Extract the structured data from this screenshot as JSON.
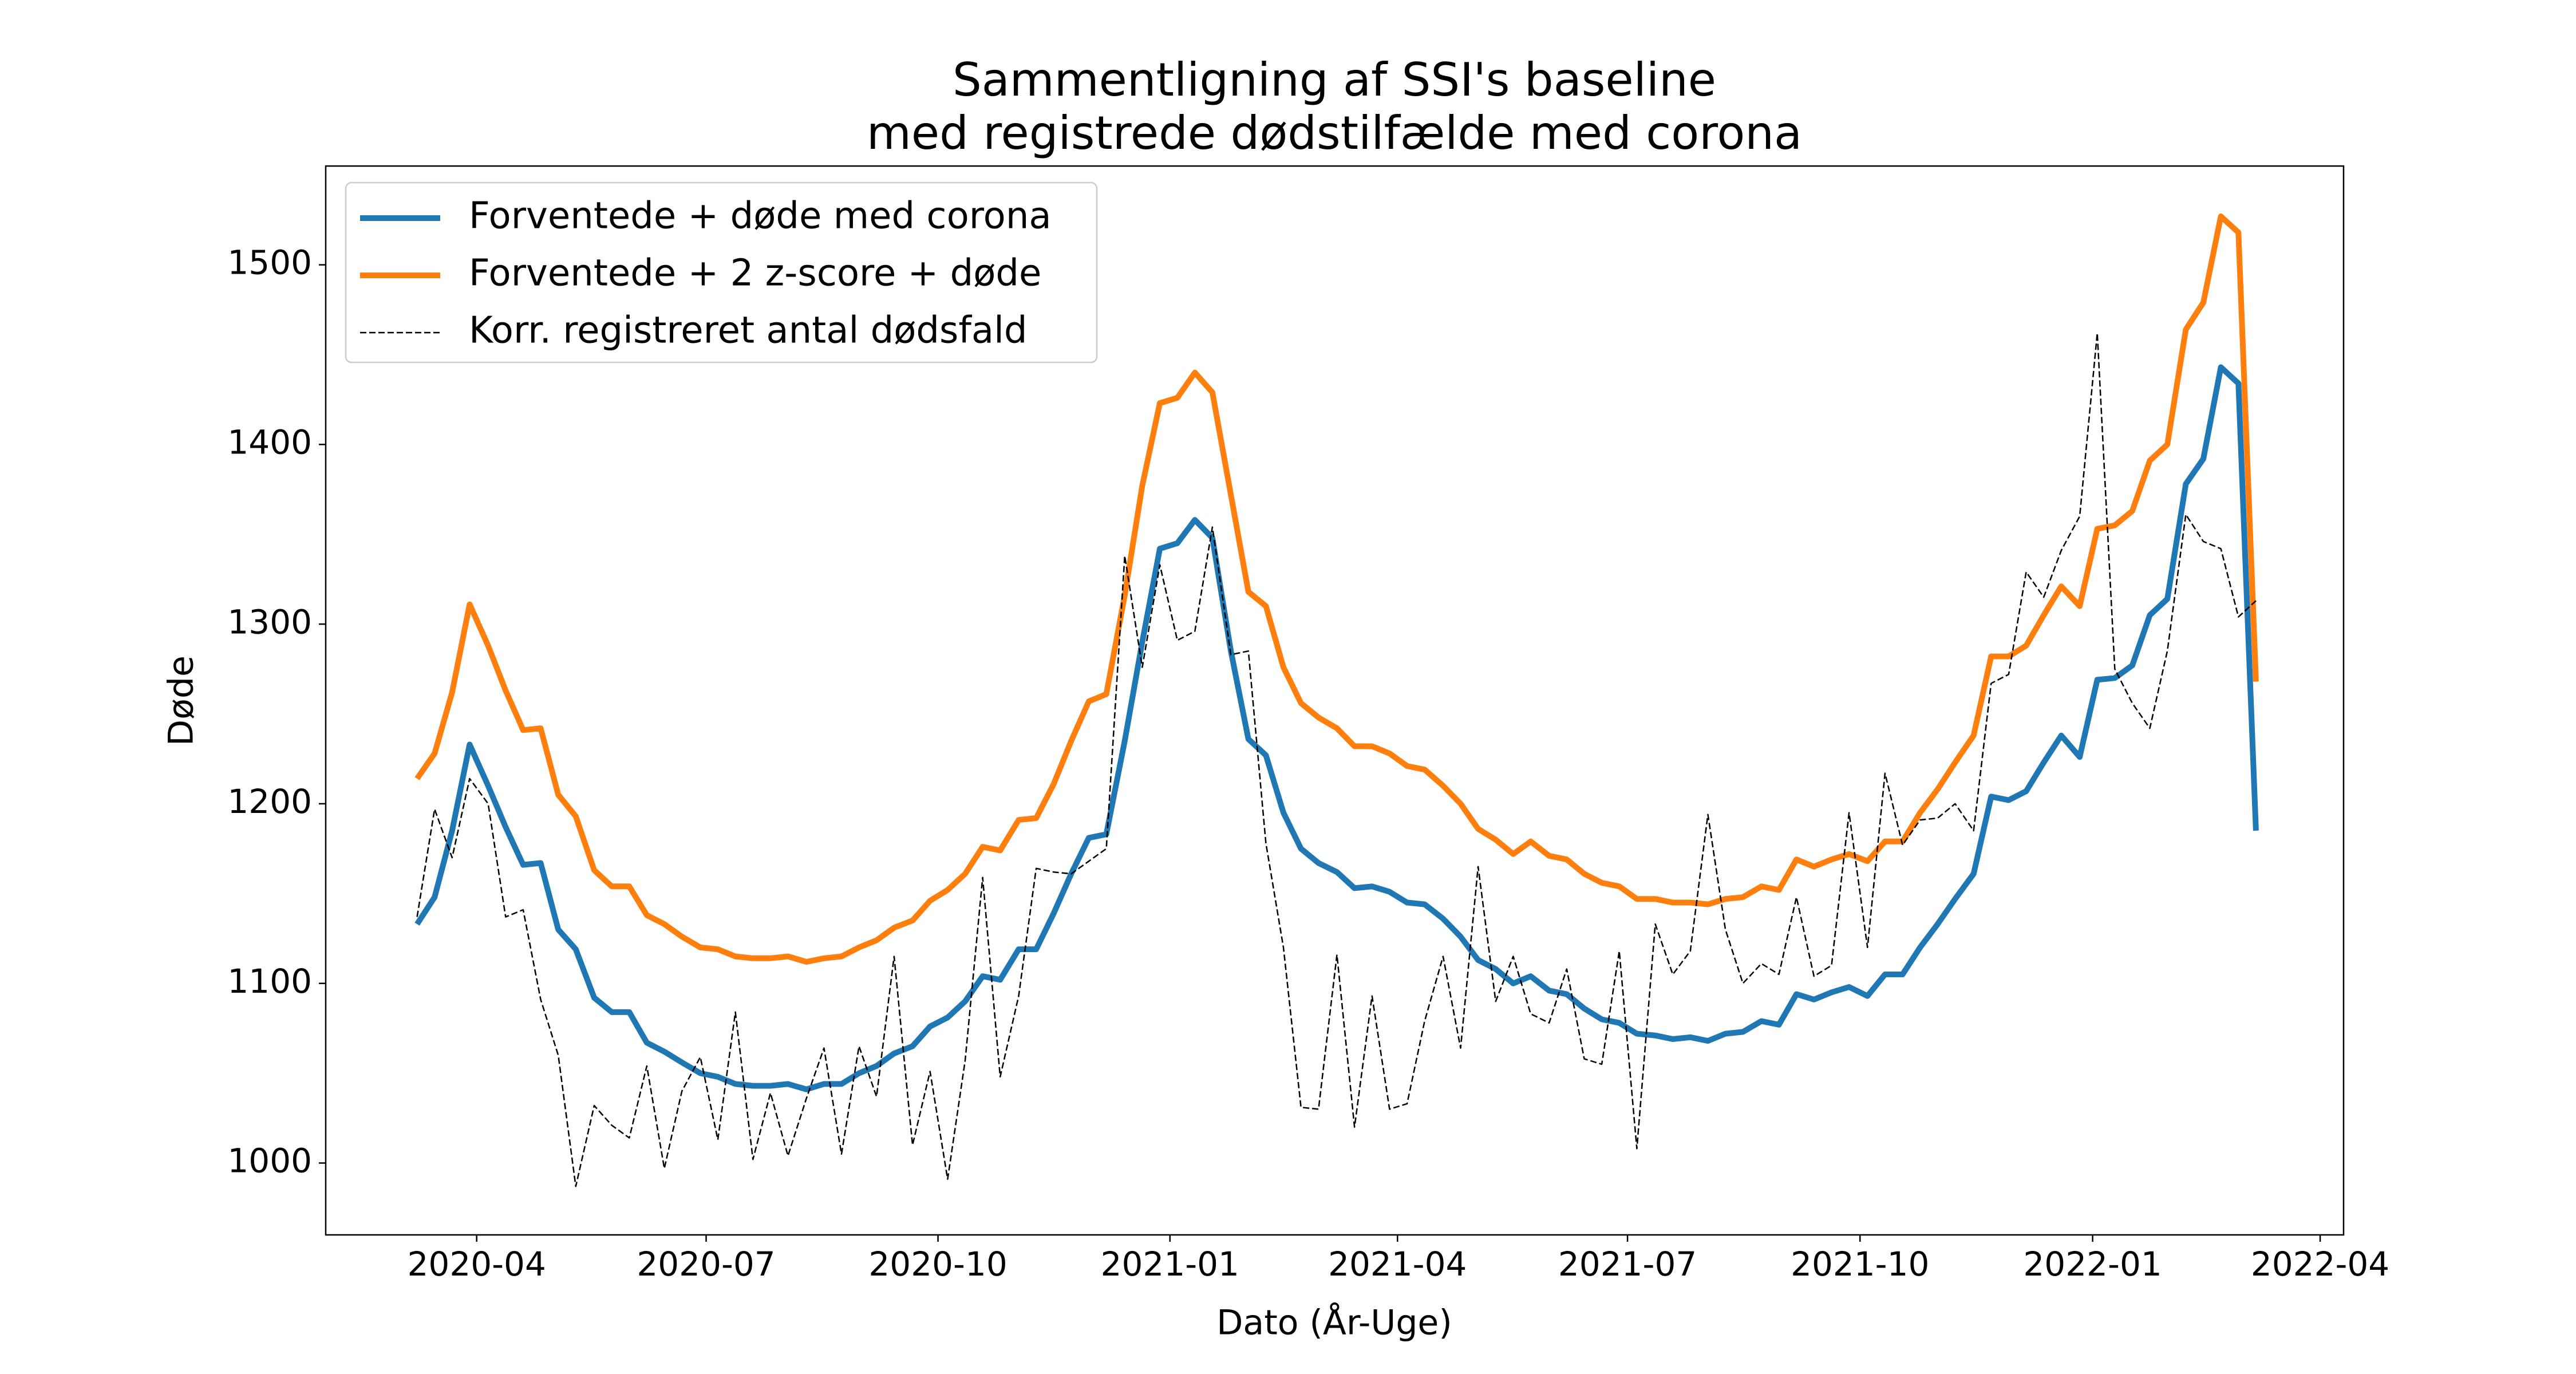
{
  "chart_data": {
    "type": "line",
    "title": [
      "Sammentligning af SSI's baseline",
      "med registrede dødstilfælde med corona"
    ],
    "xlabel": "Dato (År-Uge)",
    "ylabel": "Døde",
    "xlim": [
      2020.085,
      2022.272
    ],
    "ylim": [
      960,
      1555
    ],
    "xticks": [
      {
        "value": 2020.2486,
        "label": "2020-04"
      },
      {
        "value": 2020.4973,
        "label": "2020-07"
      },
      {
        "value": 2020.7486,
        "label": "2020-10"
      },
      {
        "value": 2021.0,
        "label": "2021-01"
      },
      {
        "value": 2021.2466,
        "label": "2021-04"
      },
      {
        "value": 2021.4959,
        "label": "2021-07"
      },
      {
        "value": 2021.7479,
        "label": "2021-10"
      },
      {
        "value": 2022.0,
        "label": "2022-01"
      },
      {
        "value": 2022.2466,
        "label": "2022-04"
      }
    ],
    "yticks": [
      1000,
      1100,
      1200,
      1300,
      1400,
      1500
    ],
    "grid": false,
    "legend": "upper left",
    "x": [
      2020.184,
      2020.203,
      2020.222,
      2020.241,
      2020.261,
      2020.28,
      2020.299,
      2020.318,
      2020.337,
      2020.356,
      2020.376,
      2020.395,
      2020.414,
      2020.433,
      2020.452,
      2020.471,
      2020.491,
      2020.51,
      2020.529,
      2020.548,
      2020.567,
      2020.586,
      2020.606,
      2020.625,
      2020.644,
      2020.663,
      2020.682,
      2020.701,
      2020.721,
      2020.74,
      2020.759,
      2020.778,
      2020.797,
      2020.816,
      2020.836,
      2020.855,
      2020.874,
      2020.893,
      2020.912,
      2020.931,
      2020.951,
      2020.97,
      2020.989,
      2021.008,
      2021.027,
      2021.046,
      2021.066,
      2021.085,
      2021.104,
      2021.123,
      2021.142,
      2021.161,
      2021.181,
      2021.2,
      2021.219,
      2021.238,
      2021.257,
      2021.276,
      2021.296,
      2021.315,
      2021.334,
      2021.353,
      2021.372,
      2021.391,
      2021.411,
      2021.43,
      2021.449,
      2021.468,
      2021.487,
      2021.506,
      2021.526,
      2021.545,
      2021.564,
      2021.583,
      2021.602,
      2021.621,
      2021.641,
      2021.66,
      2021.679,
      2021.698,
      2021.717,
      2021.736,
      2021.756,
      2021.775,
      2021.794,
      2021.813,
      2021.832,
      2021.851,
      2021.871,
      2021.89,
      2021.909,
      2021.928,
      2021.947,
      2021.966,
      2021.986,
      2022.005,
      2022.024,
      2022.043,
      2022.062,
      2022.081,
      2022.101,
      2022.12,
      2022.139,
      2022.158,
      2022.177
    ],
    "series": [
      {
        "name": "Forventede + døde med corona",
        "color": "#1f77b4",
        "style": "solid",
        "width": 10,
        "values": [
          1133,
          1148,
          1185,
          1233,
          1210,
          1187,
          1166,
          1167,
          1130,
          1119,
          1092,
          1084,
          1084,
          1067,
          1062,
          1056,
          1050,
          1048,
          1044,
          1043,
          1043,
          1044,
          1041,
          1044,
          1044,
          1050,
          1054,
          1061,
          1065,
          1076,
          1081,
          1090,
          1104,
          1102,
          1119,
          1119,
          1139,
          1161,
          1181,
          1183,
          1235,
          1290,
          1342,
          1345,
          1358,
          1348,
          1285,
          1236,
          1227,
          1195,
          1175,
          1167,
          1162,
          1153,
          1154,
          1151,
          1145,
          1144,
          1136,
          1126,
          1113,
          1108,
          1100,
          1104,
          1096,
          1094,
          1086,
          1080,
          1078,
          1072,
          1071,
          1069,
          1070,
          1068,
          1072,
          1073,
          1079,
          1077,
          1094,
          1091,
          1095,
          1098,
          1093,
          1105,
          1105,
          1120,
          1133,
          1147,
          1161,
          1204,
          1202,
          1207,
          1223,
          1238,
          1226,
          1269,
          1270,
          1277,
          1305,
          1314,
          1378,
          1392,
          1443,
          1434,
          1185
        ]
      },
      {
        "name": "Forventede + 2 z-score + døde",
        "color": "#ff7f0e",
        "style": "solid",
        "width": 10,
        "values": [
          1214,
          1228,
          1262,
          1311,
          1288,
          1263,
          1241,
          1242,
          1205,
          1193,
          1163,
          1154,
          1154,
          1138,
          1133,
          1126,
          1120,
          1119,
          1115,
          1114,
          1114,
          1115,
          1112,
          1114,
          1115,
          1120,
          1124,
          1131,
          1135,
          1146,
          1152,
          1161,
          1176,
          1174,
          1191,
          1192,
          1211,
          1235,
          1257,
          1261,
          1316,
          1377,
          1423,
          1426,
          1440,
          1429,
          1372,
          1318,
          1310,
          1276,
          1256,
          1248,
          1242,
          1232,
          1232,
          1228,
          1221,
          1219,
          1210,
          1200,
          1186,
          1180,
          1172,
          1179,
          1171,
          1169,
          1161,
          1156,
          1154,
          1147,
          1147,
          1145,
          1145,
          1144,
          1147,
          1148,
          1154,
          1152,
          1169,
          1165,
          1169,
          1172,
          1168,
          1179,
          1179,
          1195,
          1208,
          1223,
          1238,
          1282,
          1282,
          1288,
          1305,
          1321,
          1310,
          1353,
          1355,
          1363,
          1391,
          1400,
          1464,
          1479,
          1527,
          1518,
          1268
        ]
      },
      {
        "name": "Korr. registreret antal dødsfald",
        "color": "#000000",
        "style": "dashed",
        "width": 2.5,
        "values": [
          1137,
          1197,
          1170,
          1214,
          1200,
          1137,
          1141,
          1091,
          1060,
          987,
          1032,
          1021,
          1014,
          1054,
          997,
          1040,
          1059,
          1013,
          1084,
          1002,
          1039,
          1004,
          1036,
          1064,
          1005,
          1065,
          1037,
          1115,
          1010,
          1051,
          991,
          1057,
          1159,
          1048,
          1093,
          1164,
          1162,
          1161,
          1168,
          1175,
          1338,
          1276,
          1333,
          1291,
          1296,
          1354,
          1283,
          1285,
          1178,
          1120,
          1031,
          1030,
          1116,
          1020,
          1093,
          1030,
          1033,
          1079,
          1115,
          1064,
          1165,
          1090,
          1115,
          1083,
          1078,
          1108,
          1058,
          1055,
          1118,
          1008,
          1133,
          1105,
          1118,
          1194,
          1130,
          1100,
          1111,
          1105,
          1148,
          1104,
          1110,
          1195,
          1120,
          1217,
          1177,
          1191,
          1192,
          1200,
          1185,
          1267,
          1272,
          1329,
          1315,
          1341,
          1360,
          1462,
          1275,
          1256,
          1242,
          1285,
          1361,
          1346,
          1342,
          1304,
          1313
        ]
      }
    ]
  }
}
